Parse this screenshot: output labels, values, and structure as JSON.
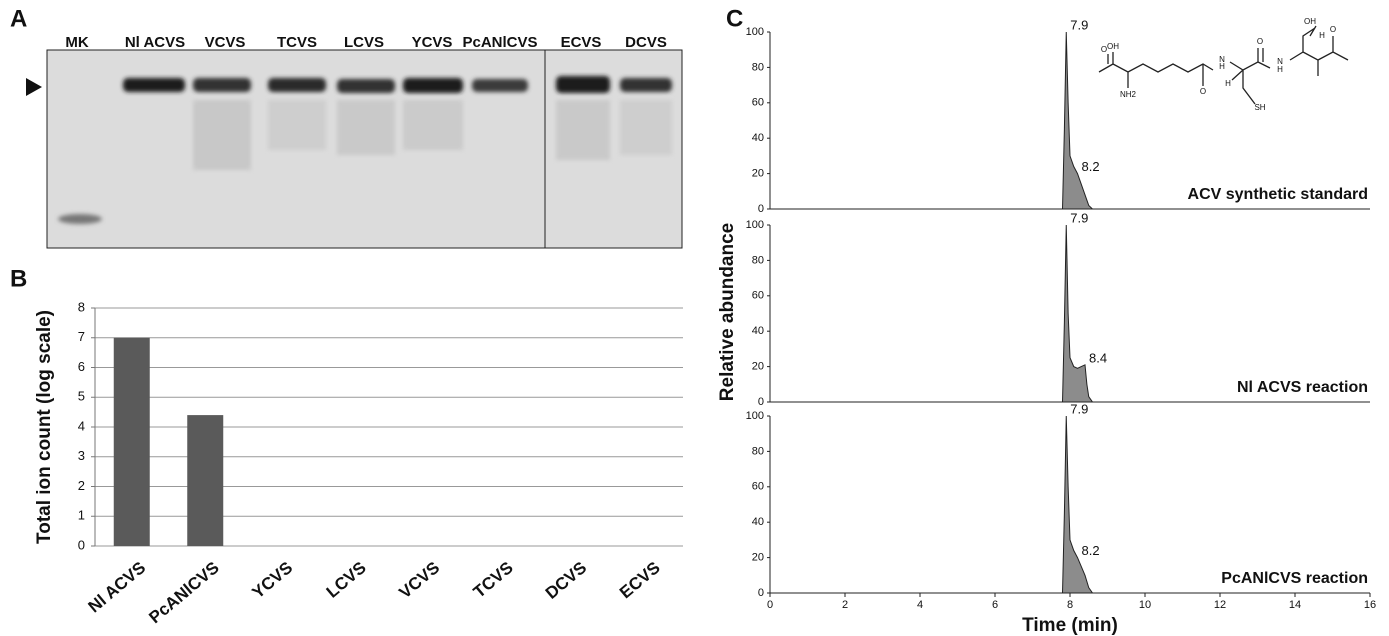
{
  "panel_labels": [
    "A",
    "B",
    "C"
  ],
  "gel": {
    "lanes": [
      "MK",
      "Nl ACVS",
      "VCVS",
      "TCVS",
      "LCVS",
      "YCVS",
      "PcANlCVS",
      "ECVS",
      "DCVS"
    ]
  },
  "structure": {
    "atoms": [
      "OH",
      "O",
      "NH2",
      "O",
      "N",
      "H",
      "H",
      "SH",
      "O",
      "N",
      "H",
      "O",
      "OH",
      "H"
    ]
  },
  "panel_c_axes": {
    "xlabel": "Time (min)",
    "ylabel": "Relative abundance"
  },
  "chart_data": [
    {
      "type": "bar",
      "ylabel": "Total ion count (log scale)",
      "categories": [
        "Nl ACVS",
        "PcANlCVS",
        "YCVS",
        "LCVS",
        "VCVS",
        "TCVS",
        "DCVS",
        "ECVS"
      ],
      "values": [
        7,
        4.4,
        0,
        0,
        0,
        0,
        0,
        0
      ],
      "color": "#5a5a5a",
      "ylim": [
        0,
        8
      ],
      "yticks": [
        0,
        1,
        2,
        3,
        4,
        5,
        6,
        7,
        8
      ],
      "grid": true
    },
    {
      "type": "area",
      "label": "ACV synthetic standard",
      "color": "#8c8c8c",
      "x": [
        7.8,
        7.85,
        7.9,
        7.95,
        8.0,
        8.1,
        8.2,
        8.3,
        8.4,
        8.5,
        8.6
      ],
      "values": [
        0,
        45,
        100,
        60,
        30,
        24,
        20,
        14,
        8,
        2,
        0
      ],
      "annotations": [
        {
          "label": "7.9",
          "x": 7.9,
          "y": 100
        },
        {
          "label": "8.2",
          "x": 8.2,
          "y": 20
        }
      ],
      "xlim": [
        0,
        16
      ],
      "ylim": [
        0,
        100
      ],
      "yticks": [
        0,
        20,
        40,
        60,
        80,
        100
      ]
    },
    {
      "type": "area",
      "label": "Nl ACVS reaction",
      "color": "#8c8c8c",
      "x": [
        7.8,
        7.85,
        7.9,
        7.95,
        8.0,
        8.1,
        8.2,
        8.3,
        8.4,
        8.45,
        8.5,
        8.6
      ],
      "values": [
        0,
        45,
        100,
        50,
        25,
        20,
        19,
        20,
        21,
        10,
        3,
        0
      ],
      "annotations": [
        {
          "label": "7.9",
          "x": 7.9,
          "y": 100
        },
        {
          "label": "8.4",
          "x": 8.4,
          "y": 21
        }
      ],
      "xlim": [
        0,
        16
      ],
      "ylim": [
        0,
        100
      ],
      "yticks": [
        0,
        20,
        40,
        60,
        80,
        100
      ]
    },
    {
      "type": "area",
      "label": "PcANlCVS reaction",
      "color": "#8c8c8c",
      "x": [
        7.8,
        7.85,
        7.9,
        7.95,
        8.0,
        8.1,
        8.2,
        8.3,
        8.4,
        8.5,
        8.6
      ],
      "values": [
        0,
        45,
        100,
        60,
        30,
        24,
        20,
        15,
        10,
        3,
        0
      ],
      "annotations": [
        {
          "label": "7.9",
          "x": 7.9,
          "y": 100
        },
        {
          "label": "8.2",
          "x": 8.2,
          "y": 20
        }
      ],
      "xlim": [
        0,
        16
      ],
      "ylim": [
        0,
        100
      ],
      "yticks": [
        0,
        20,
        40,
        60,
        80,
        100
      ],
      "xticks": [
        0,
        2,
        4,
        6,
        8,
        10,
        12,
        14,
        16
      ]
    }
  ]
}
